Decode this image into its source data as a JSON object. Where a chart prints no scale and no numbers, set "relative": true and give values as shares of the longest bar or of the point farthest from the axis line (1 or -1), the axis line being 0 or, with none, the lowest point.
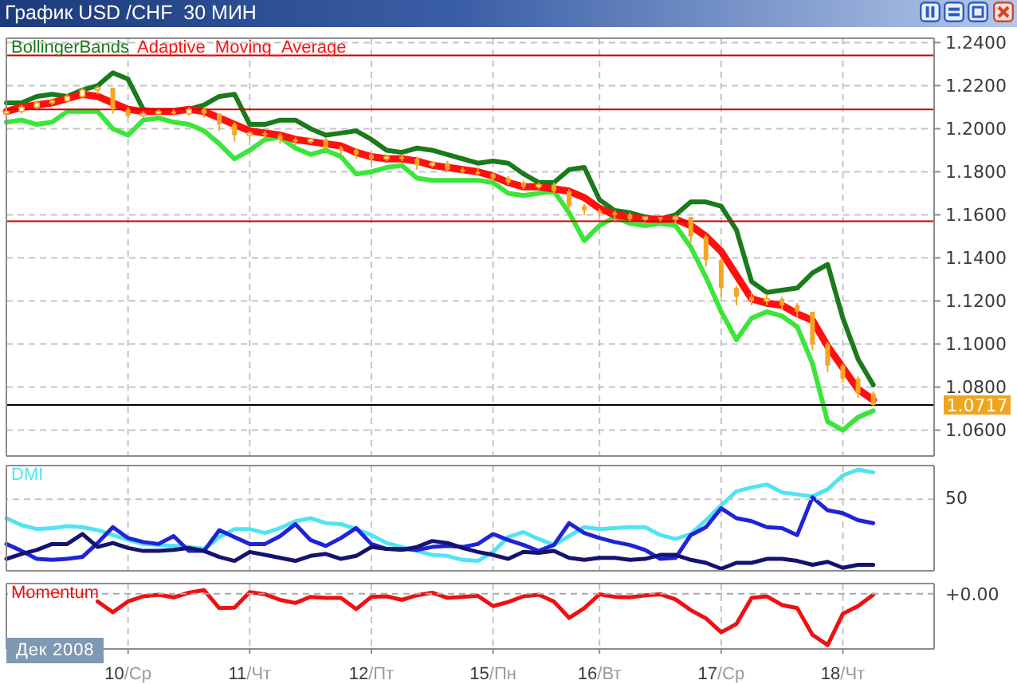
{
  "chart_data": [
    {
      "type": "line",
      "title": "График USD /CHF  30 МИН",
      "categories": [
        null,
        null,
        null,
        null,
        null,
        null,
        null,
        null,
        null,
        null,
        null,
        null,
        null,
        null,
        null,
        null,
        null,
        null,
        null,
        null,
        null,
        null,
        null,
        null,
        null,
        null,
        null,
        null,
        null,
        null,
        null,
        null,
        null,
        null,
        null,
        null,
        null,
        null,
        null,
        null,
        null,
        null,
        null,
        null,
        null,
        null,
        null,
        null,
        null,
        null,
        null,
        null,
        null,
        null,
        null,
        null,
        null,
        null,
        null,
        null,
        null,
        null
      ],
      "ylim": [
        1.048,
        1.242
      ],
      "yticks": [
        {
          "value": 1.24,
          "label": "1.2400"
        },
        {
          "value": 1.22,
          "label": "1.2200"
        },
        {
          "value": 1.2,
          "label": "1.2000"
        },
        {
          "value": 1.18,
          "label": "1.1800"
        },
        {
          "value": 1.16,
          "label": "1.1600"
        },
        {
          "value": 1.14,
          "label": "1.1400"
        },
        {
          "value": 1.12,
          "label": "1.1200"
        },
        {
          "value": 1.1,
          "label": "1.1000"
        },
        {
          "value": 1.08,
          "label": "1.0800"
        },
        {
          "value": 1.06,
          "label": "1.0600"
        }
      ],
      "tick_labels": "y",
      "grid": true,
      "legend": "top left",
      "ref_lines": [
        {
          "axis": "y",
          "value": 1.234,
          "color": "#cc0000"
        },
        {
          "axis": "y",
          "value": 1.209,
          "color": "#cc0000"
        },
        {
          "axis": "y",
          "value": 1.157,
          "color": "#cc0000"
        },
        {
          "axis": "y",
          "value": 1.0717,
          "label": "1.0717",
          "color": "#000000"
        }
      ],
      "series": [
        {
          "name": "BollingerBands",
          "color": "#1b7a1b",
          "values": [
            1.212,
            1.212,
            1.215,
            1.216,
            1.215,
            1.218,
            1.22,
            1.226,
            1.223,
            1.209,
            1.208,
            1.208,
            1.209,
            1.211,
            1.215,
            1.216,
            1.202,
            1.202,
            1.204,
            1.204,
            1.2,
            1.197,
            1.198,
            1.199,
            1.195,
            1.19,
            1.189,
            1.191,
            1.19,
            1.188,
            1.186,
            1.184,
            1.185,
            1.184,
            1.179,
            1.175,
            1.175,
            1.181,
            1.182,
            1.167,
            1.162,
            1.161,
            1.159,
            1.158,
            1.16,
            1.166,
            1.166,
            1.164,
            1.153,
            1.129,
            1.124,
            1.125,
            1.126,
            1.133,
            1.137,
            1.112,
            1.093,
            1.081,
            null,
            null,
            null,
            null
          ]
        },
        {
          "color": "#3ae63a",
          "values": [
            1.203,
            1.204,
            1.202,
            1.203,
            1.208,
            1.208,
            1.208,
            1.2,
            1.197,
            1.204,
            1.205,
            1.203,
            1.202,
            1.199,
            1.193,
            1.186,
            1.19,
            1.195,
            1.196,
            1.191,
            1.188,
            1.19,
            1.187,
            1.179,
            1.18,
            1.182,
            1.183,
            1.177,
            1.176,
            1.176,
            1.176,
            1.176,
            1.175,
            1.17,
            1.169,
            1.17,
            1.171,
            1.161,
            1.148,
            1.155,
            1.159,
            1.156,
            1.155,
            1.156,
            1.155,
            1.145,
            1.131,
            1.115,
            1.102,
            1.112,
            1.115,
            1.113,
            1.108,
            1.091,
            1.064,
            1.06,
            1.066,
            1.069,
            null,
            null,
            null,
            null
          ]
        },
        {
          "name": "Adaptive_Moving_Average",
          "color": "#ff1010",
          "values": [
            1.208,
            1.21,
            1.211,
            1.212,
            1.214,
            1.216,
            1.215,
            1.212,
            1.209,
            1.208,
            1.208,
            1.208,
            1.209,
            1.208,
            1.205,
            1.202,
            1.199,
            1.198,
            1.197,
            1.195,
            1.194,
            1.193,
            1.192,
            1.189,
            1.187,
            1.186,
            1.186,
            1.185,
            1.183,
            1.182,
            1.181,
            1.18,
            1.178,
            1.175,
            1.173,
            1.173,
            1.172,
            1.171,
            1.168,
            1.163,
            1.16,
            1.159,
            1.158,
            1.158,
            1.158,
            1.155,
            1.15,
            1.143,
            1.132,
            1.121,
            1.119,
            1.118,
            1.114,
            1.111,
            1.099,
            1.089,
            1.079,
            1.074,
            null,
            null,
            null,
            null
          ]
        },
        {
          "type": "candlestick",
          "color": "#f5a623",
          "ohlc": [
            [
              1.207,
              1.209,
              1.206,
              1.208
            ],
            [
              1.208,
              1.211,
              1.207,
              1.21
            ],
            [
              1.21,
              1.213,
              1.209,
              1.212
            ],
            [
              1.212,
              1.214,
              1.211,
              1.213
            ],
            [
              1.213,
              1.216,
              1.212,
              1.215
            ],
            [
              1.215,
              1.219,
              1.214,
              1.218
            ],
            [
              1.218,
              1.22,
              1.216,
              1.219
            ],
            [
              1.219,
              1.219,
              1.207,
              1.209
            ],
            [
              1.209,
              1.21,
              1.205,
              1.206
            ],
            [
              1.206,
              1.208,
              1.205,
              1.207
            ],
            [
              1.207,
              1.209,
              1.206,
              1.208
            ],
            [
              1.208,
              1.209,
              1.206,
              1.207
            ],
            [
              1.207,
              1.21,
              1.206,
              1.209
            ],
            [
              1.209,
              1.21,
              1.205,
              1.207
            ],
            [
              1.207,
              1.207,
              1.199,
              1.202
            ],
            [
              1.202,
              1.203,
              1.194,
              1.197
            ],
            [
              1.197,
              1.199,
              1.195,
              1.198
            ],
            [
              1.198,
              1.199,
              1.195,
              1.197
            ],
            [
              1.197,
              1.198,
              1.193,
              1.195
            ],
            [
              1.195,
              1.196,
              1.192,
              1.194
            ],
            [
              1.194,
              1.196,
              1.193,
              1.195
            ],
            [
              1.195,
              1.196,
              1.19,
              1.191
            ],
            [
              1.191,
              1.192,
              1.188,
              1.19
            ],
            [
              1.19,
              1.191,
              1.186,
              1.188
            ],
            [
              1.188,
              1.189,
              1.184,
              1.186
            ],
            [
              1.186,
              1.188,
              1.185,
              1.187
            ],
            [
              1.187,
              1.188,
              1.185,
              1.186
            ],
            [
              1.186,
              1.187,
              1.181,
              1.183
            ],
            [
              1.183,
              1.185,
              1.182,
              1.184
            ],
            [
              1.184,
              1.185,
              1.18,
              1.181
            ],
            [
              1.181,
              1.182,
              1.179,
              1.18
            ],
            [
              1.18,
              1.182,
              1.178,
              1.179
            ],
            [
              1.179,
              1.18,
              1.176,
              1.177
            ],
            [
              1.177,
              1.178,
              1.174,
              1.175
            ],
            [
              1.175,
              1.176,
              1.172,
              1.173
            ],
            [
              1.173,
              1.175,
              1.172,
              1.174
            ],
            [
              1.174,
              1.175,
              1.17,
              1.171
            ],
            [
              1.171,
              1.172,
              1.162,
              1.164
            ],
            [
              1.164,
              1.165,
              1.16,
              1.162
            ],
            [
              1.162,
              1.163,
              1.159,
              1.161
            ],
            [
              1.161,
              1.162,
              1.158,
              1.16
            ],
            [
              1.16,
              1.161,
              1.157,
              1.158
            ],
            [
              1.158,
              1.159,
              1.157,
              1.159
            ],
            [
              1.159,
              1.159,
              1.157,
              1.158
            ],
            [
              1.158,
              1.16,
              1.156,
              1.159
            ],
            [
              1.159,
              1.159,
              1.147,
              1.15
            ],
            [
              1.15,
              1.151,
              1.136,
              1.139
            ],
            [
              1.139,
              1.14,
              1.122,
              1.126
            ],
            [
              1.126,
              1.127,
              1.118,
              1.122
            ],
            [
              1.122,
              1.124,
              1.118,
              1.12
            ],
            [
              1.12,
              1.123,
              1.118,
              1.121
            ],
            [
              1.121,
              1.122,
              1.116,
              1.118
            ],
            [
              1.118,
              1.119,
              1.112,
              1.115
            ],
            [
              1.115,
              1.115,
              1.097,
              1.1
            ],
            [
              1.1,
              1.101,
              1.087,
              1.09
            ],
            [
              1.09,
              1.091,
              1.082,
              1.084
            ],
            [
              1.084,
              1.085,
              1.075,
              1.077
            ],
            [
              1.077,
              1.078,
              1.071,
              1.0717
            ],
            null,
            null,
            null,
            null
          ]
        }
      ]
    },
    {
      "type": "line",
      "relative": true,
      "categories": [
        null,
        null,
        null,
        null,
        null,
        null,
        null,
        null,
        null,
        null,
        null,
        null,
        null,
        null,
        null,
        null,
        null,
        null,
        null,
        null,
        null,
        null,
        null,
        null,
        null,
        null,
        null,
        null,
        null,
        null,
        null,
        null,
        null,
        null,
        null,
        null,
        null,
        null,
        null,
        null,
        null,
        null,
        null,
        null,
        null,
        null,
        null,
        null,
        null,
        null,
        null,
        null,
        null,
        null,
        null,
        null,
        null,
        null,
        null,
        null,
        null,
        null
      ],
      "tick_labels": false,
      "grid": "x",
      "legend": "top left",
      "ref_lines": [
        {
          "axis": "y",
          "value": 0.7,
          "color": "#c4c4c4",
          "line_style": "dashed"
        }
      ],
      "annotations": [
        "50"
      ],
      "series": [
        {
          "name": "DMI",
          "color": "#50e4f2",
          "values": [
            0.51,
            0.44,
            0.4,
            0.41,
            0.43,
            0.42,
            0.39,
            0.34,
            0.29,
            0.25,
            0.24,
            0.23,
            0.22,
            0.2,
            0.32,
            0.4,
            0.4,
            0.36,
            0.41,
            0.48,
            0.51,
            0.46,
            0.45,
            0.4,
            0.34,
            0.26,
            0.22,
            0.18,
            0.14,
            0.13,
            0.09,
            0.08,
            0.17,
            0.32,
            0.37,
            0.3,
            0.24,
            0.33,
            0.42,
            0.4,
            0.41,
            0.42,
            0.42,
            0.34,
            0.3,
            0.35,
            0.49,
            0.64,
            0.78,
            0.82,
            0.85,
            0.77,
            0.75,
            0.73,
            0.8,
            0.94,
            1,
            0.97,
            null,
            null,
            null,
            null
          ]
        },
        {
          "color": "#1f24d8",
          "values": [
            0.25,
            0.18,
            0.1,
            0.09,
            0.1,
            0.12,
            0.26,
            0.42,
            0.31,
            0.27,
            0.25,
            0.33,
            0.18,
            0.18,
            0.39,
            0.32,
            0.25,
            0.25,
            0.33,
            0.45,
            0.29,
            0.23,
            0.31,
            0.41,
            0.25,
            0.2,
            0.2,
            0.19,
            0.22,
            0.23,
            0.22,
            0.25,
            0.35,
            0.29,
            0.24,
            0.18,
            0.24,
            0.46,
            0.36,
            0.31,
            0.27,
            0.24,
            0.19,
            0.1,
            0.11,
            0.34,
            0.42,
            0.61,
            0.51,
            0.48,
            0.42,
            0.41,
            0.34,
            0.72,
            0.59,
            0.56,
            0.49,
            0.46,
            null,
            null,
            null,
            null
          ]
        },
        {
          "color": "#14146e",
          "values": [
            0.1,
            0.15,
            0.19,
            0.25,
            0.25,
            0.35,
            0.22,
            0.26,
            0.21,
            0.18,
            0.18,
            0.19,
            0.21,
            0.18,
            0.12,
            0.08,
            0.17,
            0.14,
            0.11,
            0.08,
            0.13,
            0.15,
            0.1,
            0.13,
            0.22,
            0.2,
            0.19,
            0.22,
            0.28,
            0.26,
            0.21,
            0.17,
            0.14,
            0.1,
            0.17,
            0.16,
            0.18,
            0.11,
            0.09,
            0.11,
            0.11,
            0.09,
            0.1,
            0.14,
            0.14,
            0.09,
            0.06,
            0,
            0.06,
            0.06,
            0.1,
            0.1,
            0.08,
            0.04,
            0.07,
            0.01,
            0.04,
            0.04,
            null,
            null,
            null,
            null
          ]
        }
      ]
    },
    {
      "type": "line",
      "relative": true,
      "categories": [
        null,
        null,
        null,
        null,
        null,
        null,
        null,
        null,
        "10/Ср",
        null,
        null,
        null,
        null,
        null,
        null,
        null,
        "11/Чт",
        null,
        null,
        null,
        null,
        null,
        null,
        null,
        "12/Пт",
        null,
        null,
        null,
        null,
        null,
        null,
        null,
        "15/Пн",
        null,
        null,
        null,
        null,
        null,
        null,
        "16/Вт",
        null,
        null,
        null,
        null,
        null,
        null,
        null,
        "17/Ср",
        null,
        null,
        null,
        null,
        null,
        null,
        null,
        "18/Чт",
        null,
        null,
        null,
        null,
        null,
        null
      ],
      "tick_labels": "x",
      "grid": "x",
      "legend": "top left",
      "ref_lines": [
        {
          "axis": "y",
          "value": 0,
          "label": "+0.00",
          "color": "#a8a8a8",
          "line_style": "dashed"
        }
      ],
      "annotations": [
        "Дек 2008"
      ],
      "series": [
        {
          "name": "Momentum",
          "color": "#ee1111",
          "values": [
            null,
            null,
            null,
            null,
            null,
            null,
            -0.15,
            -0.36,
            -0.15,
            -0.05,
            -0.02,
            -0.07,
            0.02,
            0.07,
            -0.28,
            -0.27,
            0.03,
            -0.01,
            -0.12,
            -0.18,
            -0.06,
            -0.08,
            -0.08,
            -0.3,
            -0.06,
            -0.05,
            -0.12,
            -0.03,
            0.02,
            -0.08,
            -0.06,
            -0.04,
            -0.24,
            -0.16,
            -0.05,
            -0.02,
            -0.15,
            -0.47,
            -0.28,
            -0.01,
            -0.06,
            -0.07,
            -0.03,
            -0.01,
            -0.11,
            -0.32,
            -0.48,
            -0.75,
            -0.59,
            -0.08,
            -0.05,
            -0.22,
            -0.28,
            -0.8,
            -1,
            -0.39,
            -0.24,
            -0.02,
            null,
            null,
            null,
            null
          ]
        }
      ]
    }
  ]
}
